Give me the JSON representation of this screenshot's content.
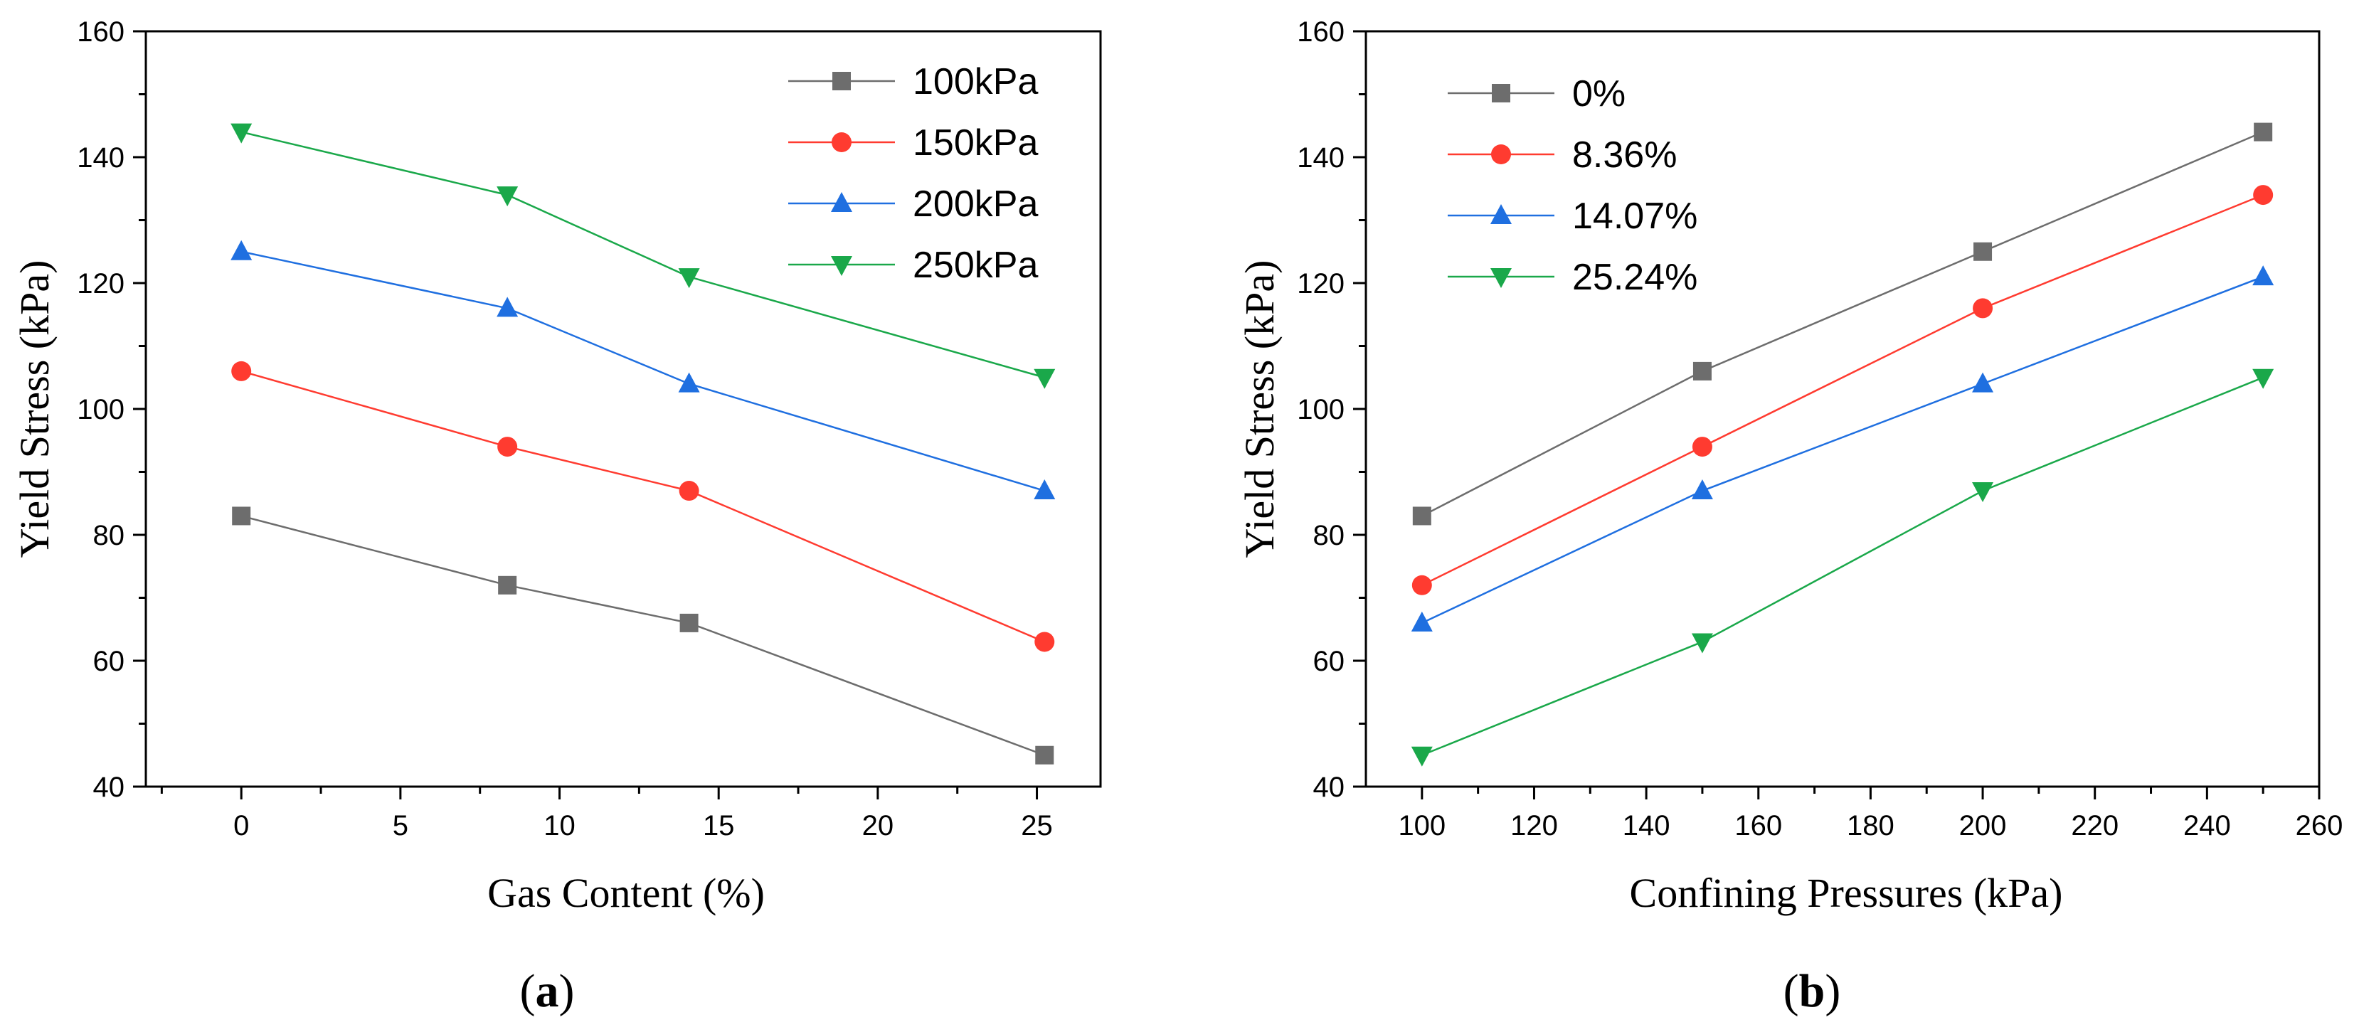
{
  "chart_data": [
    {
      "type": "line",
      "panel_label": "a",
      "xlabel": "Gas Content (%)",
      "ylabel": "Yield Stress (kPa)",
      "xlim": [
        -3,
        27
      ],
      "ylim": [
        40,
        160
      ],
      "xticks": [
        0,
        5,
        10,
        15,
        20,
        25
      ],
      "yticks": [
        40,
        60,
        80,
        100,
        120,
        140,
        160
      ],
      "legend_position": "top-right",
      "series": [
        {
          "name": "100kPa",
          "color": "#6d6d6d",
          "marker": "square",
          "x": [
            0,
            8.36,
            14.07,
            25.24
          ],
          "y": [
            83,
            72,
            66,
            45
          ]
        },
        {
          "name": "150kPa",
          "color": "#ff3b30",
          "marker": "circle",
          "x": [
            0,
            8.36,
            14.07,
            25.24
          ],
          "y": [
            106,
            94,
            87,
            63
          ]
        },
        {
          "name": "200kPa",
          "color": "#1f6fe0",
          "marker": "triangle-up",
          "x": [
            0,
            8.36,
            14.07,
            25.24
          ],
          "y": [
            125,
            116,
            104,
            87
          ]
        },
        {
          "name": "250kPa",
          "color": "#1aa84a",
          "marker": "triangle-down",
          "x": [
            0,
            8.36,
            14.07,
            25.24
          ],
          "y": [
            144,
            134,
            121,
            105
          ]
        }
      ]
    },
    {
      "type": "line",
      "panel_label": "b",
      "xlabel": "Confining Pressures (kPa)",
      "ylabel": "Yield Stress (kPa)",
      "xlim": [
        90,
        260
      ],
      "ylim": [
        40,
        160
      ],
      "xticks": [
        100,
        120,
        140,
        160,
        180,
        200,
        220,
        240,
        260
      ],
      "yticks": [
        40,
        60,
        80,
        100,
        120,
        140,
        160
      ],
      "legend_position": "top-left",
      "series": [
        {
          "name": "0%",
          "color": "#6d6d6d",
          "marker": "square",
          "x": [
            100,
            150,
            200,
            250
          ],
          "y": [
            83,
            106,
            125,
            144
          ]
        },
        {
          "name": "8.36%",
          "color": "#ff3b30",
          "marker": "circle",
          "x": [
            100,
            150,
            200,
            250
          ],
          "y": [
            72,
            94,
            116,
            134
          ]
        },
        {
          "name": "14.07%",
          "color": "#1f6fe0",
          "marker": "triangle-up",
          "x": [
            100,
            150,
            200,
            250
          ],
          "y": [
            66,
            87,
            104,
            121
          ]
        },
        {
          "name": "25.24%",
          "color": "#1aa84a",
          "marker": "triangle-down",
          "x": [
            100,
            150,
            200,
            250
          ],
          "y": [
            45,
            63,
            87,
            105
          ]
        }
      ]
    }
  ]
}
